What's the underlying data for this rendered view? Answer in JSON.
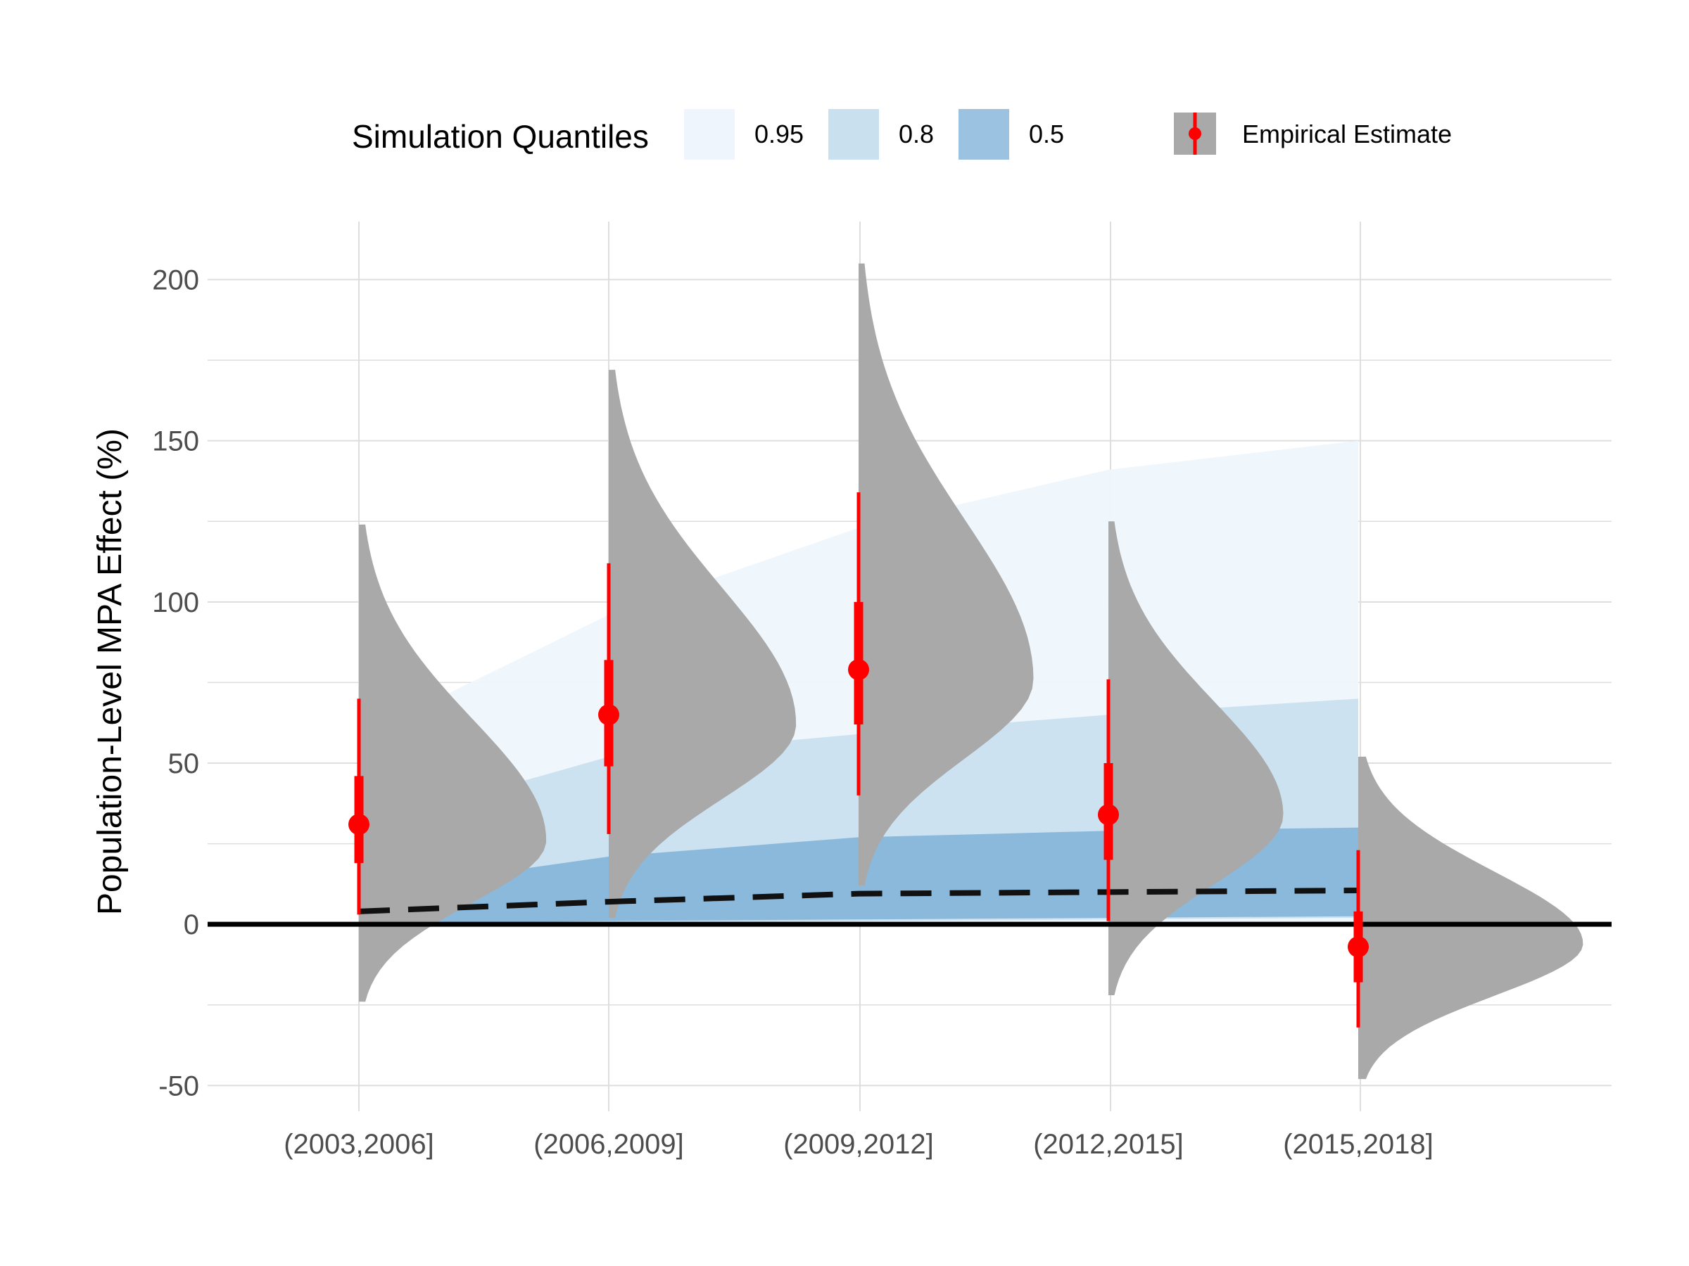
{
  "chart_data": {
    "type": "violin",
    "ylabel": "Population-Level MPA Effect (%)",
    "xlabel": "",
    "ylim": [
      -58,
      218
    ],
    "y_ticks": [
      -50,
      0,
      50,
      100,
      150,
      200
    ],
    "y_minor_ticks": [
      -25,
      25,
      75,
      125,
      175
    ],
    "categories": [
      "(2003,2006]",
      "(2006,2009]",
      "(2009,2012]",
      "(2012,2015]",
      "(2015,2018]"
    ],
    "grid": true,
    "legend": {
      "placement": "top",
      "quantile_title": "Simulation Quantiles",
      "quantile_entries": [
        {
          "label": "0.95",
          "color": "#eef5fc"
        },
        {
          "label": "0.8",
          "color": "#c9e0ef"
        },
        {
          "label": "0.5",
          "color": "#9bc2e1"
        }
      ],
      "estimate_label": "Empirical Estimate"
    },
    "simulation_bands": {
      "x_index": [
        0,
        1,
        2,
        3,
        4
      ],
      "median": [
        4,
        7,
        9.5,
        10,
        10.5
      ],
      "q95": {
        "lower": [
          0,
          0,
          0,
          0,
          0
        ],
        "upper": [
          58,
          96,
          123,
          141,
          150
        ]
      },
      "q80": {
        "lower": [
          0,
          0.5,
          1,
          1.5,
          2
        ],
        "upper": [
          30,
          52,
          59,
          65,
          70
        ]
      },
      "q50": {
        "lower": [
          0,
          1,
          1.5,
          2,
          2.5
        ],
        "upper": [
          10,
          21,
          27,
          29,
          30
        ]
      }
    },
    "empirical_estimates": [
      {
        "category": "(2003,2006]",
        "point": 31,
        "inner": [
          19,
          46
        ],
        "outer": [
          3,
          70
        ],
        "violin": {
          "min": -24,
          "max": 124,
          "mode": 26,
          "width": 0.75
        }
      },
      {
        "category": "(2006,2009]",
        "point": 65,
        "inner": [
          49,
          82
        ],
        "outer": [
          28,
          112
        ],
        "violin": {
          "min": 2,
          "max": 172,
          "mode": 62,
          "width": 0.75
        }
      },
      {
        "category": "(2009,2012]",
        "point": 79,
        "inner": [
          62,
          100
        ],
        "outer": [
          40,
          134
        ],
        "violin": {
          "min": 12,
          "max": 205,
          "mode": 76,
          "width": 0.7
        }
      },
      {
        "category": "(2012,2015]",
        "point": 34,
        "inner": [
          20,
          50
        ],
        "outer": [
          1,
          76
        ],
        "violin": {
          "min": -22,
          "max": 125,
          "mode": 34,
          "width": 0.7
        }
      },
      {
        "category": "(2015,2018]",
        "point": -7,
        "inner": [
          -18,
          4
        ],
        "outer": [
          -32,
          23
        ],
        "violin": {
          "min": -48,
          "max": 52,
          "mode": -6,
          "width": 0.9
        }
      }
    ],
    "colors": {
      "violin": "#a9a9a9",
      "estimate": "#ff0000",
      "median_line": "#111111",
      "zero_line": "#000000",
      "grid": "#dedede"
    }
  }
}
